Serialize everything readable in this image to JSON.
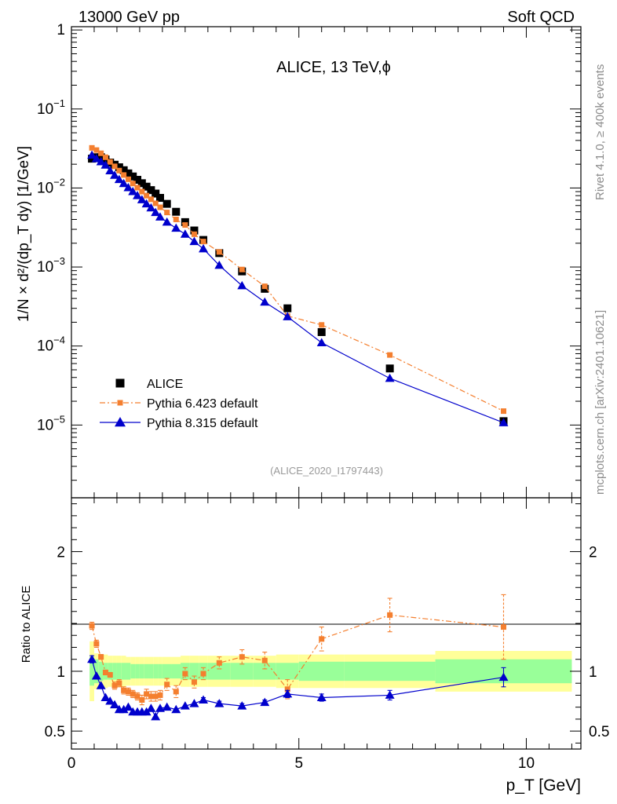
{
  "header": {
    "energy_label": "13000 GeV pp",
    "category_label": "Soft QCD"
  },
  "side_labels": {
    "rivet": "Rivet 4.1.0, ≥ 400k events",
    "source": "mcplots.cern.ch [arXiv:2401.10621]"
  },
  "chart_data": [
    {
      "type": "scatter",
      "panel": "main",
      "title": "ALICE, 13 TeV,ϕ",
      "analysis_id": "(ALICE_2020_I1797443)",
      "ylabel": "1/N × d²/(dp_T dy) [1/GeV]",
      "yscale": "log",
      "ylim": [
        1.2e-06,
        1.1
      ],
      "y_ticks": [
        {
          "value": 1,
          "base": "1",
          "exp": ""
        },
        {
          "value": 0.1,
          "base": "10",
          "exp": "−1"
        },
        {
          "value": 0.01,
          "base": "10",
          "exp": "−2"
        },
        {
          "value": 0.001,
          "base": "10",
          "exp": "−3"
        },
        {
          "value": 0.0001,
          "base": "10",
          "exp": "−4"
        },
        {
          "value": 1e-05,
          "base": "10",
          "exp": "−5"
        }
      ],
      "xlim": [
        0,
        11.2
      ],
      "x": [
        0.45,
        0.55,
        0.65,
        0.75,
        0.85,
        0.95,
        1.05,
        1.15,
        1.25,
        1.35,
        1.45,
        1.55,
        1.65,
        1.75,
        1.85,
        1.95,
        2.1,
        2.3,
        2.5,
        2.7,
        2.9,
        3.25,
        3.75,
        4.25,
        4.75,
        5.5,
        7.0,
        9.5
      ],
      "series": [
        {
          "name": "ALICE",
          "color": "#000000",
          "marker": "square",
          "line": "none",
          "values": [
            0.0235,
            0.0245,
            0.0245,
            0.023,
            0.021,
            0.0197,
            0.0183,
            0.0168,
            0.0153,
            0.014,
            0.0127,
            0.0115,
            0.0104,
            0.0094,
            0.0085,
            0.0075,
            0.0063,
            0.005,
            0.0037,
            0.0029,
            0.0022,
            0.0015,
            0.00088,
            0.00053,
            0.0003,
            0.00015,
            5.2e-05,
            1.12e-05
          ]
        },
        {
          "name": "Pythia 6.423 default",
          "color": "#f47f2f",
          "marker": "square-small",
          "line": "dashdot",
          "values": [
            0.0322,
            0.0302,
            0.0275,
            0.0245,
            0.0214,
            0.0188,
            0.0166,
            0.0146,
            0.0129,
            0.0114,
            0.0101,
            0.009,
            0.008,
            0.0072,
            0.0064,
            0.0057,
            0.0049,
            0.004,
            0.0034,
            0.0026,
            0.0021,
            0.00155,
            0.00093,
            0.00057,
            0.00024,
            0.000185,
            7.7e-05,
            1.5e-05
          ]
        },
        {
          "name": "Pythia 8.315 default",
          "color": "#0000cc",
          "marker": "triangle",
          "line": "solid",
          "values": [
            0.026,
            0.0235,
            0.0215,
            0.0195,
            0.0165,
            0.0145,
            0.0128,
            0.0114,
            0.0101,
            0.009,
            0.008,
            0.0071,
            0.0063,
            0.0056,
            0.0049,
            0.0043,
            0.0037,
            0.0031,
            0.0026,
            0.0021,
            0.0017,
            0.00105,
            0.00058,
            0.00036,
            0.000235,
            0.00011,
            3.9e-05,
            1.07e-05
          ]
        }
      ]
    },
    {
      "type": "scatter",
      "panel": "ratio",
      "ylabel": "Ratio to ALICE",
      "ylim": [
        0.35,
        2.45
      ],
      "y_ticks": [
        {
          "value": 2,
          "label": "2"
        },
        {
          "value": 1,
          "label": "1"
        },
        {
          "value": 0.5,
          "label": "0.5"
        }
      ],
      "xlabel": "p_T [GeV]",
      "xlim": [
        0,
        11.2
      ],
      "x_ticks": [
        {
          "value": 0,
          "label": "0"
        },
        {
          "value": 5,
          "label": "5"
        },
        {
          "value": 10,
          "label": "10"
        }
      ],
      "x": [
        0.45,
        0.55,
        0.65,
        0.75,
        0.85,
        0.95,
        1.05,
        1.15,
        1.25,
        1.35,
        1.45,
        1.55,
        1.65,
        1.75,
        1.85,
        1.95,
        2.1,
        2.3,
        2.5,
        2.7,
        2.9,
        3.25,
        3.75,
        4.25,
        4.75,
        5.5,
        7.0,
        9.5
      ],
      "uncertainty_bands": {
        "bin_edges": [
          0.4,
          0.5,
          0.6,
          0.7,
          0.8,
          0.9,
          1.0,
          1.1,
          1.2,
          1.3,
          1.4,
          1.5,
          1.6,
          1.7,
          1.8,
          1.9,
          2.0,
          2.2,
          2.4,
          2.6,
          2.8,
          3.0,
          3.5,
          4.0,
          4.5,
          5.0,
          6.0,
          8.0,
          11.0
        ],
        "stat": [
          0.12,
          0.1,
          0.08,
          0.07,
          0.07,
          0.07,
          0.07,
          0.07,
          0.07,
          0.06,
          0.06,
          0.06,
          0.06,
          0.06,
          0.06,
          0.06,
          0.06,
          0.06,
          0.07,
          0.07,
          0.07,
          0.07,
          0.07,
          0.07,
          0.07,
          0.08,
          0.08,
          0.1
        ],
        "total": [
          0.25,
          0.15,
          0.14,
          0.14,
          0.13,
          0.13,
          0.13,
          0.13,
          0.12,
          0.12,
          0.12,
          0.12,
          0.12,
          0.12,
          0.12,
          0.12,
          0.12,
          0.12,
          0.13,
          0.13,
          0.13,
          0.13,
          0.13,
          0.13,
          0.14,
          0.14,
          0.14,
          0.17
        ],
        "stat_color": "#99ff99",
        "total_color": "#ffff99"
      },
      "series": [
        {
          "name": "Pythia 6.423 default",
          "color": "#f47f2f",
          "marker": "square-small",
          "line": "dashdot",
          "values": [
            1.38,
            1.23,
            1.12,
            0.99,
            0.97,
            0.88,
            0.9,
            0.84,
            0.83,
            0.81,
            0.79,
            0.76,
            0.81,
            0.79,
            0.79,
            0.8,
            0.89,
            0.83,
            0.98,
            0.91,
            0.98,
            1.07,
            1.12,
            1.09,
            0.85,
            1.27,
            1.47,
            1.37
          ],
          "errors": [
            0.03,
            0.03,
            0.02,
            0.02,
            0.02,
            0.03,
            0.03,
            0.03,
            0.03,
            0.03,
            0.03,
            0.04,
            0.04,
            0.04,
            0.04,
            0.04,
            0.05,
            0.05,
            0.05,
            0.05,
            0.05,
            0.05,
            0.06,
            0.07,
            0.08,
            0.1,
            0.14,
            0.27
          ]
        },
        {
          "name": "Pythia 8.315 default",
          "color": "#0000cc",
          "marker": "triangle",
          "line": "solid",
          "values": [
            1.1,
            0.96,
            0.88,
            0.78,
            0.75,
            0.72,
            0.68,
            0.68,
            0.7,
            0.66,
            0.66,
            0.66,
            0.66,
            0.69,
            0.62,
            0.69,
            0.7,
            0.68,
            0.71,
            0.73,
            0.76,
            0.73,
            0.71,
            0.74,
            0.81,
            0.78,
            0.8,
            0.95
          ],
          "errors": [
            0.03,
            0.01,
            0.01,
            0.01,
            0.01,
            0.01,
            0.01,
            0.01,
            0.01,
            0.01,
            0.01,
            0.01,
            0.01,
            0.01,
            0.01,
            0.01,
            0.01,
            0.01,
            0.01,
            0.01,
            0.02,
            0.02,
            0.02,
            0.02,
            0.03,
            0.03,
            0.04,
            0.08
          ]
        }
      ]
    }
  ]
}
